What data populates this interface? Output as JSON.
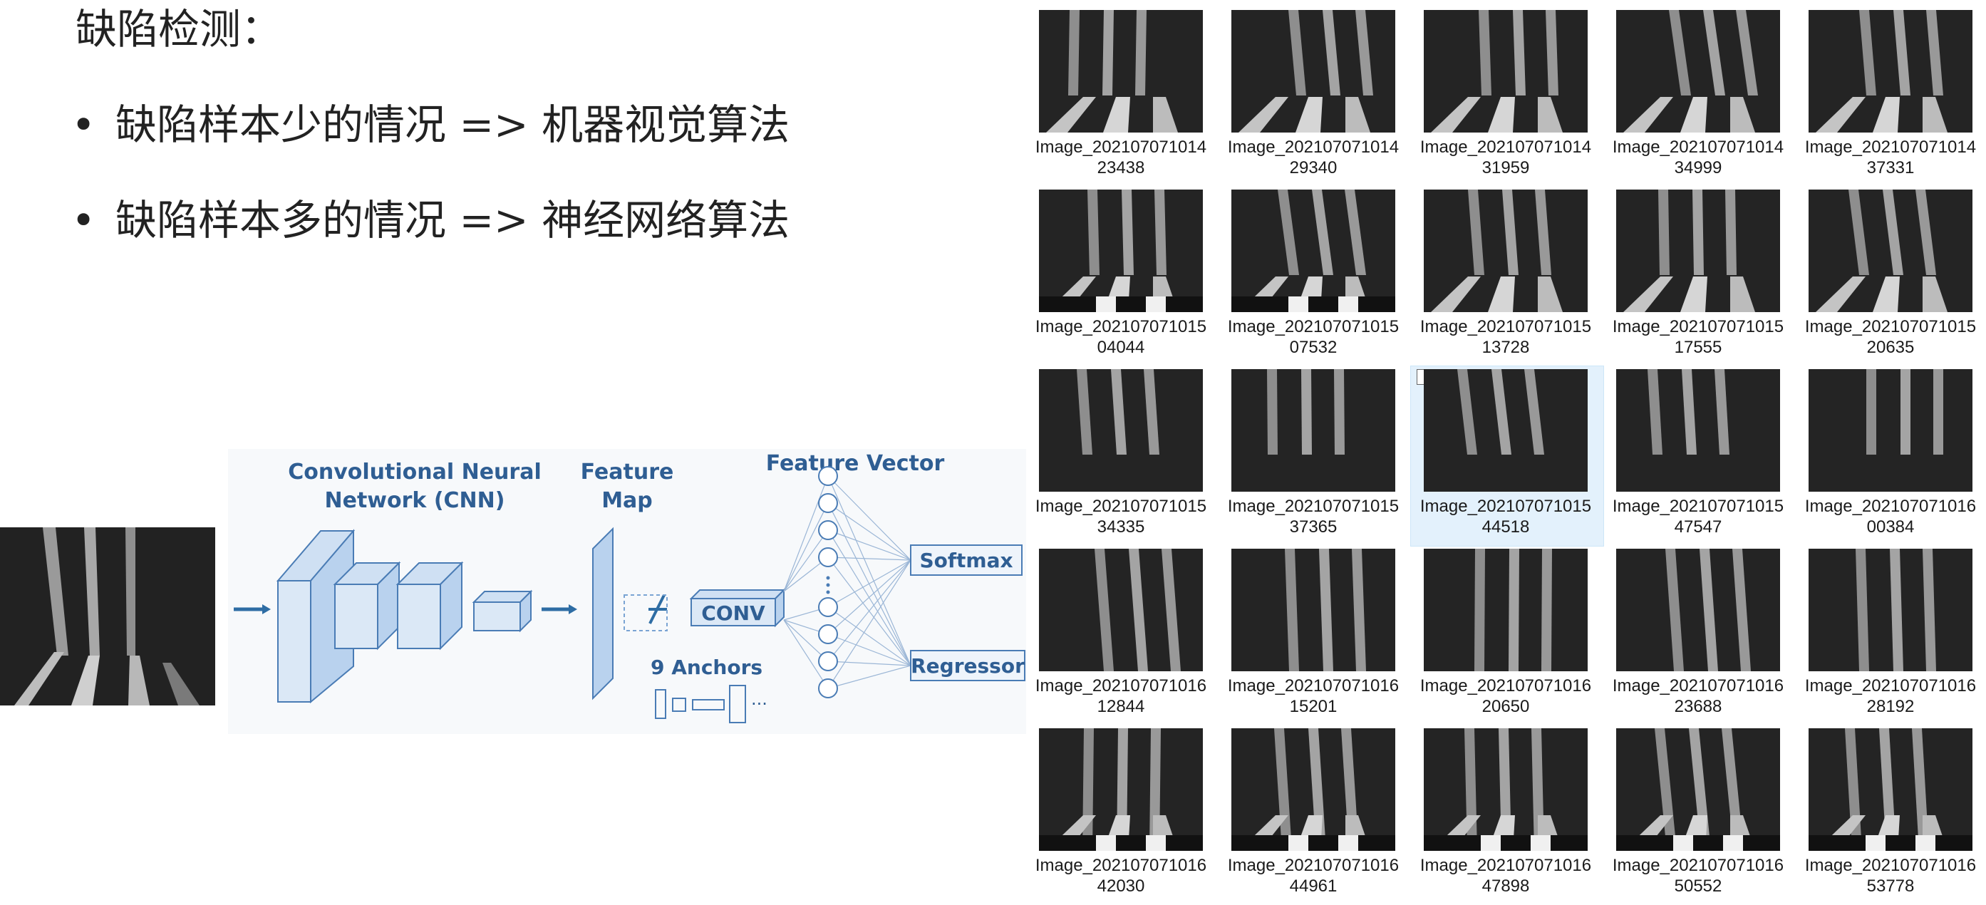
{
  "slide": {
    "heading": "缺陷检测：",
    "bullets": [
      {
        "dot": "•",
        "left": "缺陷样本少的情况",
        "arrow": "=>",
        "right": "机器视觉算法"
      },
      {
        "dot": "•",
        "left": "缺陷样本多的情况",
        "arrow": "=>",
        "right": "神经网络算法"
      }
    ]
  },
  "diagram": {
    "cnn_title_1": "Convolutional Neural",
    "cnn_title_2": "Network (CNN)",
    "feature_map_1": "Feature",
    "feature_map_2": "Map",
    "feature_vector": "Feature Vector",
    "conv": "CONV",
    "anchors": "9 Anchors",
    "anchors_dots": "···",
    "softmax": "Softmax",
    "regressor": "Regressor",
    "accent": "#2e6da4",
    "fill": "#dbe8f6"
  },
  "thumbnails": [
    {
      "line1": "Image_202107071014",
      "line2": "23438"
    },
    {
      "line1": "Image_202107071014",
      "line2": "29340"
    },
    {
      "line1": "Image_202107071014",
      "line2": "31959"
    },
    {
      "line1": "Image_202107071014",
      "line2": "34999"
    },
    {
      "line1": "Image_202107071014",
      "line2": "37331"
    },
    {
      "line1": "Image_202107071015",
      "line2": "04044"
    },
    {
      "line1": "Image_202107071015",
      "line2": "07532"
    },
    {
      "line1": "Image_202107071015",
      "line2": "13728"
    },
    {
      "line1": "Image_202107071015",
      "line2": "17555"
    },
    {
      "line1": "Image_202107071015",
      "line2": "20635"
    },
    {
      "line1": "Image_202107071015",
      "line2": "34335"
    },
    {
      "line1": "Image_202107071015",
      "line2": "37365"
    },
    {
      "line1": "Image_202107071015",
      "line2": "44518",
      "selected": true
    },
    {
      "line1": "Image_202107071015",
      "line2": "47547"
    },
    {
      "line1": "Image_202107071016",
      "line2": "00384"
    },
    {
      "line1": "Image_202107071016",
      "line2": "12844"
    },
    {
      "line1": "Image_202107071016",
      "line2": "15201"
    },
    {
      "line1": "Image_202107071016",
      "line2": "20650"
    },
    {
      "line1": "Image_202107071016",
      "line2": "23688"
    },
    {
      "line1": "Image_202107071016",
      "line2": "28192"
    },
    {
      "line1": "Image_202107071016",
      "line2": "42030"
    },
    {
      "line1": "Image_202107071016",
      "line2": "44961"
    },
    {
      "line1": "Image_202107071016",
      "line2": "47898"
    },
    {
      "line1": "Image_202107071016",
      "line2": "50552"
    },
    {
      "line1": "Image_202107071016",
      "line2": "53778"
    }
  ]
}
